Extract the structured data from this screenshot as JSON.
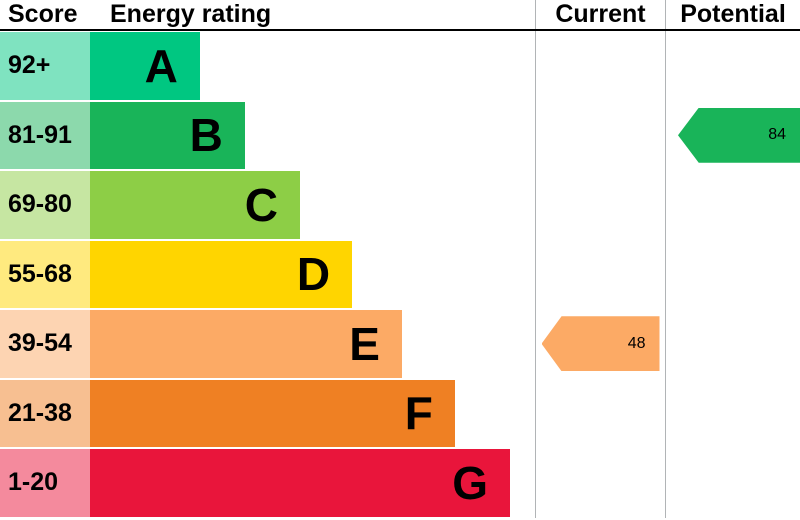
{
  "header": {
    "score": "Score",
    "energy_rating": "Energy rating",
    "current": "Current",
    "potential": "Potential"
  },
  "bands": [
    {
      "score": "92+",
      "letter": "A",
      "color": "#00c781",
      "score_bg": "#7fe3c0",
      "width_pct": 24.7
    },
    {
      "score": "81-91",
      "letter": "B",
      "color": "#19b459",
      "score_bg": "#8cd9ac",
      "width_pct": 34.8
    },
    {
      "score": "69-80",
      "letter": "C",
      "color": "#8dce46",
      "score_bg": "#c6e6a2",
      "width_pct": 47.2
    },
    {
      "score": "55-68",
      "letter": "D",
      "color": "#ffd500",
      "score_bg": "#ffea7f",
      "width_pct": 58.9
    },
    {
      "score": "39-54",
      "letter": "E",
      "color": "#fcaa65",
      "score_bg": "#fdd4b2",
      "width_pct": 70.1
    },
    {
      "score": "21-38",
      "letter": "F",
      "color": "#ef8023",
      "score_bg": "#f7bf91",
      "width_pct": 82.0
    },
    {
      "score": "1-20",
      "letter": "G",
      "color": "#e9153b",
      "score_bg": "#f48a9d",
      "width_pct": 94.4
    }
  ],
  "markers": {
    "current": {
      "value": "48",
      "band": "E",
      "color": "#fcaa65",
      "row_index": 4
    },
    "potential": {
      "value": "84",
      "band": "B",
      "color": "#19b459",
      "row_index": 1
    }
  },
  "chart_data": {
    "type": "bar",
    "title": "Energy rating",
    "categories": [
      "A",
      "B",
      "C",
      "D",
      "E",
      "F",
      "G"
    ],
    "score_ranges": [
      "92+",
      "81-91",
      "69-80",
      "55-68",
      "39-54",
      "21-38",
      "1-20"
    ],
    "band_colors": [
      "#00c781",
      "#19b459",
      "#8dce46",
      "#ffd500",
      "#fcaa65",
      "#ef8023",
      "#e9153b"
    ],
    "current": {
      "value": 48,
      "band": "E"
    },
    "potential": {
      "value": 84,
      "band": "B"
    },
    "legend_position": "none",
    "grid": false
  }
}
